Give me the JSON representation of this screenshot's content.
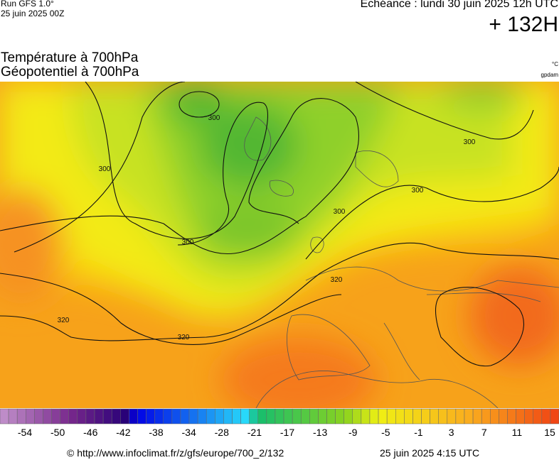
{
  "header": {
    "run": "Run GFS 1.0°",
    "run_date": "25 juin 2025 00Z",
    "echeance": "Echéance : lundi 30 juin 2025 12h UTC",
    "lead": "+ 132H",
    "title_line1": "Température à 700hPa",
    "title_line2": "Géopotentiel à 700hPa",
    "unit_temp": "°C",
    "unit_geo": "gpdam"
  },
  "contour_labels": [
    "300",
    "300",
    "300",
    "300",
    "300",
    "300",
    "320",
    "320",
    "320"
  ],
  "colorbar": {
    "labels": [
      -54,
      -50,
      -46,
      -42,
      -38,
      -34,
      -28,
      -21,
      -17,
      -13,
      -9,
      -5,
      -1,
      3,
      7,
      11,
      15
    ]
  },
  "footer": {
    "url": "© http://www.infoclimat.fr/z/gfs/europe/700_2/132",
    "date": "25 juin 2025  4:15 UTC"
  }
}
